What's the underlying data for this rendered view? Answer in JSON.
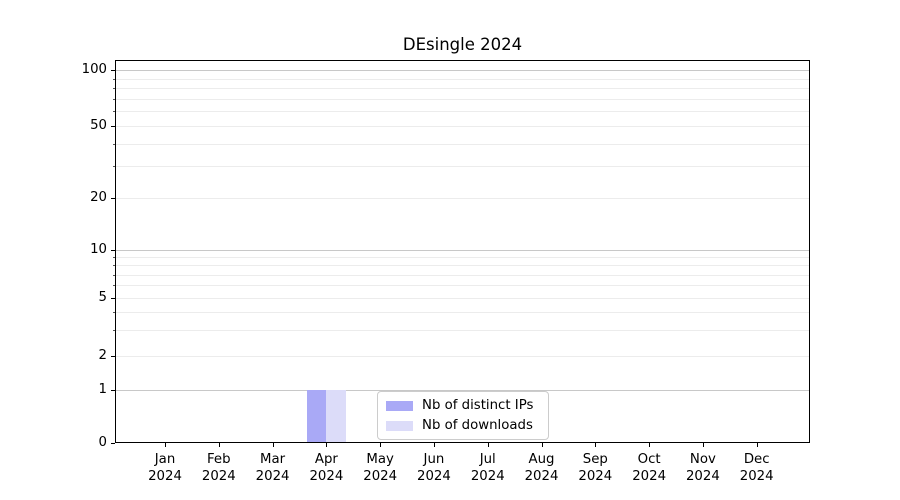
{
  "title": "DEsingle 2024",
  "chart_data": {
    "type": "bar",
    "title": "DEsingle 2024",
    "categories": [
      "Jan 2024",
      "Feb 2024",
      "Mar 2024",
      "Apr 2024",
      "May 2024",
      "Jun 2024",
      "Jul 2024",
      "Aug 2024",
      "Sep 2024",
      "Oct 2024",
      "Nov 2024",
      "Dec 2024"
    ],
    "series": [
      {
        "name": "Nb of distinct IPs",
        "color": "#a9a9f6",
        "values": [
          0,
          0,
          0,
          1,
          0,
          0,
          0,
          0,
          0,
          0,
          0,
          0
        ]
      },
      {
        "name": "Nb of downloads",
        "color": "#dcdcf9",
        "values": [
          0,
          0,
          0,
          1,
          0,
          0,
          0,
          0,
          0,
          0,
          0,
          0
        ]
      }
    ],
    "yscale": "log-like with zero baseline",
    "ylim": [
      0,
      110
    ],
    "y_major_ticks": [
      0,
      1,
      2,
      5,
      10,
      20,
      50,
      100
    ],
    "y_minor_gridlines": [
      3,
      4,
      6,
      7,
      8,
      9,
      30,
      40,
      60,
      70,
      80,
      90
    ],
    "y_emphasized_gridlines": [
      1,
      10,
      100
    ],
    "grid": true,
    "legend_position": "lower center inside plot"
  },
  "colors": {
    "major_grid": "#c8c8c8",
    "minor_grid": "#ececec",
    "axis": "#000000",
    "background": "#ffffff",
    "legend_border": "#cccccc"
  }
}
